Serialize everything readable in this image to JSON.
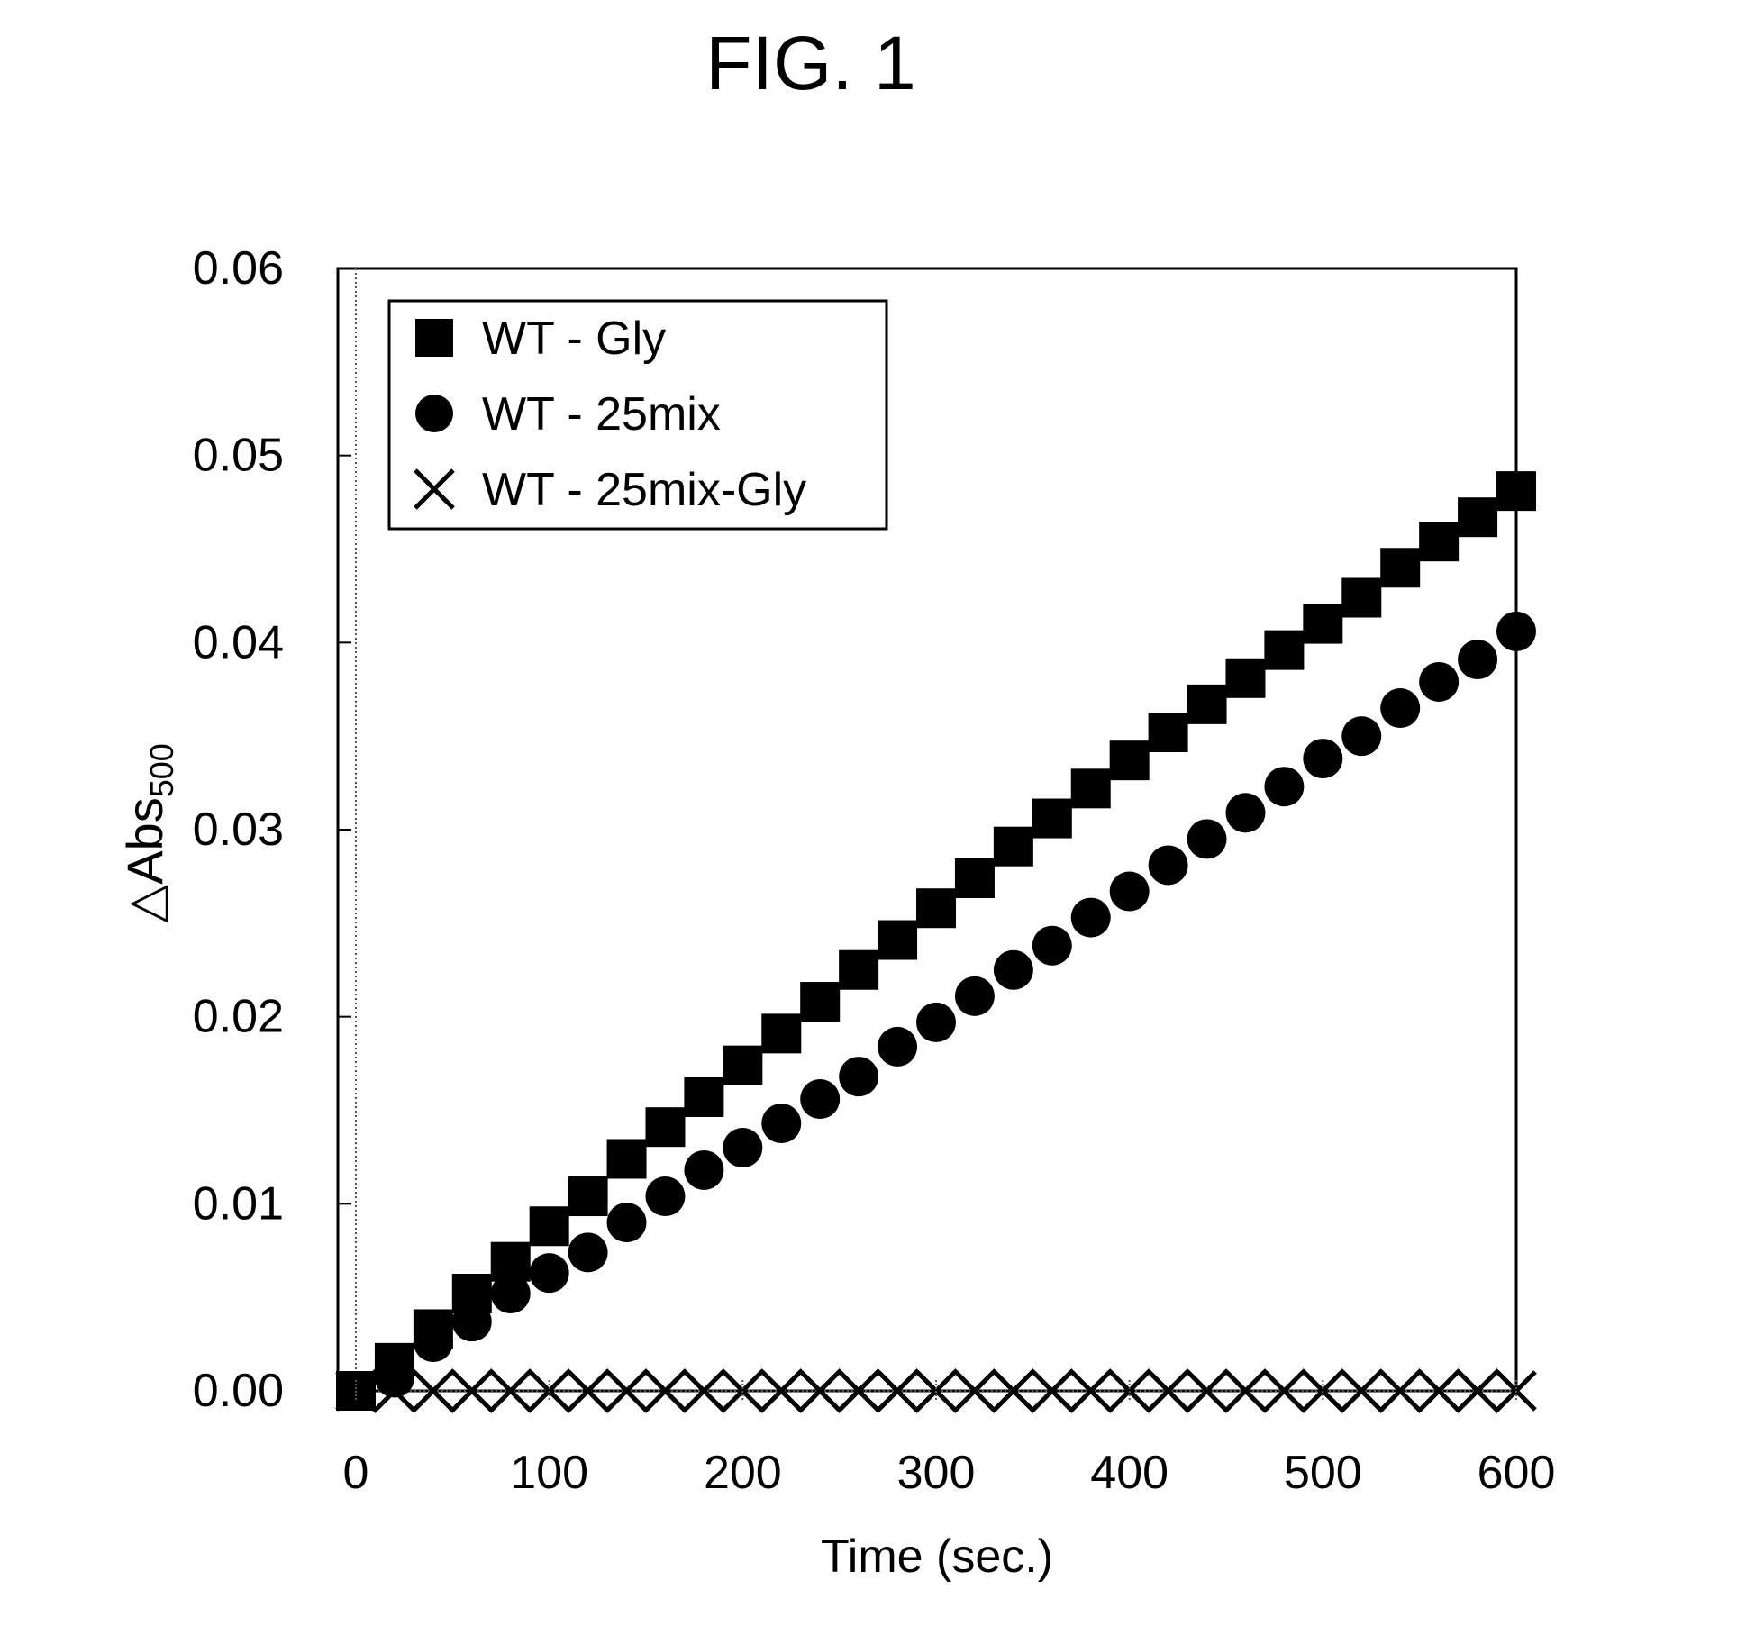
{
  "figure": {
    "title": "FIG. 1"
  },
  "chart_data": {
    "type": "scatter",
    "xlabel": "Time (sec.)",
    "ylabel": {
      "main": "△Abs",
      "sub": "500"
    },
    "xlim": [
      0,
      600
    ],
    "ylim": [
      0,
      0.06
    ],
    "xticks": [
      "0",
      "100",
      "200",
      "300",
      "400",
      "500",
      "600"
    ],
    "yticks": [
      "0.00",
      "0.01",
      "0.02",
      "0.03",
      "0.04",
      "0.05",
      "0.06"
    ],
    "legend_position": "top-left",
    "x": [
      0,
      20,
      40,
      60,
      80,
      100,
      120,
      140,
      160,
      180,
      200,
      220,
      240,
      260,
      280,
      300,
      320,
      340,
      360,
      380,
      400,
      420,
      440,
      460,
      480,
      500,
      520,
      540,
      560,
      580,
      600
    ],
    "series": [
      {
        "name": "WT - Gly",
        "marker": "square",
        "values": [
          0.0,
          0.0015,
          0.0033,
          0.0052,
          0.0069,
          0.0088,
          0.0104,
          0.0124,
          0.0141,
          0.0157,
          0.0174,
          0.0191,
          0.0208,
          0.0225,
          0.0241,
          0.0258,
          0.0274,
          0.0291,
          0.0306,
          0.0322,
          0.0337,
          0.0352,
          0.0367,
          0.0381,
          0.0396,
          0.041,
          0.0424,
          0.044,
          0.0454,
          0.0467,
          0.0481
        ]
      },
      {
        "name": "WT - 25mix",
        "marker": "circle",
        "values": [
          0.0,
          0.0007,
          0.0026,
          0.0037,
          0.0052,
          0.0063,
          0.0074,
          0.009,
          0.0104,
          0.0118,
          0.013,
          0.0143,
          0.0156,
          0.0168,
          0.0184,
          0.0197,
          0.0211,
          0.0225,
          0.0238,
          0.0253,
          0.0267,
          0.0281,
          0.0295,
          0.0309,
          0.0323,
          0.0338,
          0.035,
          0.0365,
          0.0379,
          0.0391,
          0.0406
        ]
      },
      {
        "name": "WT - 25mix-Gly",
        "marker": "x",
        "values": [
          0.0,
          0.0,
          0.0,
          0.0,
          0.0,
          0.0,
          0.0,
          0.0,
          0.0,
          0.0,
          0.0,
          0.0,
          0.0,
          0.0,
          0.0,
          0.0,
          0.0,
          0.0,
          0.0,
          0.0,
          0.0,
          0.0,
          0.0,
          0.0,
          0.0,
          0.0,
          0.0,
          0.0,
          0.0,
          0.0,
          0.0
        ]
      }
    ],
    "colors": {
      "marker": "#000000",
      "axis": "#000000",
      "background": "#ffffff"
    }
  }
}
